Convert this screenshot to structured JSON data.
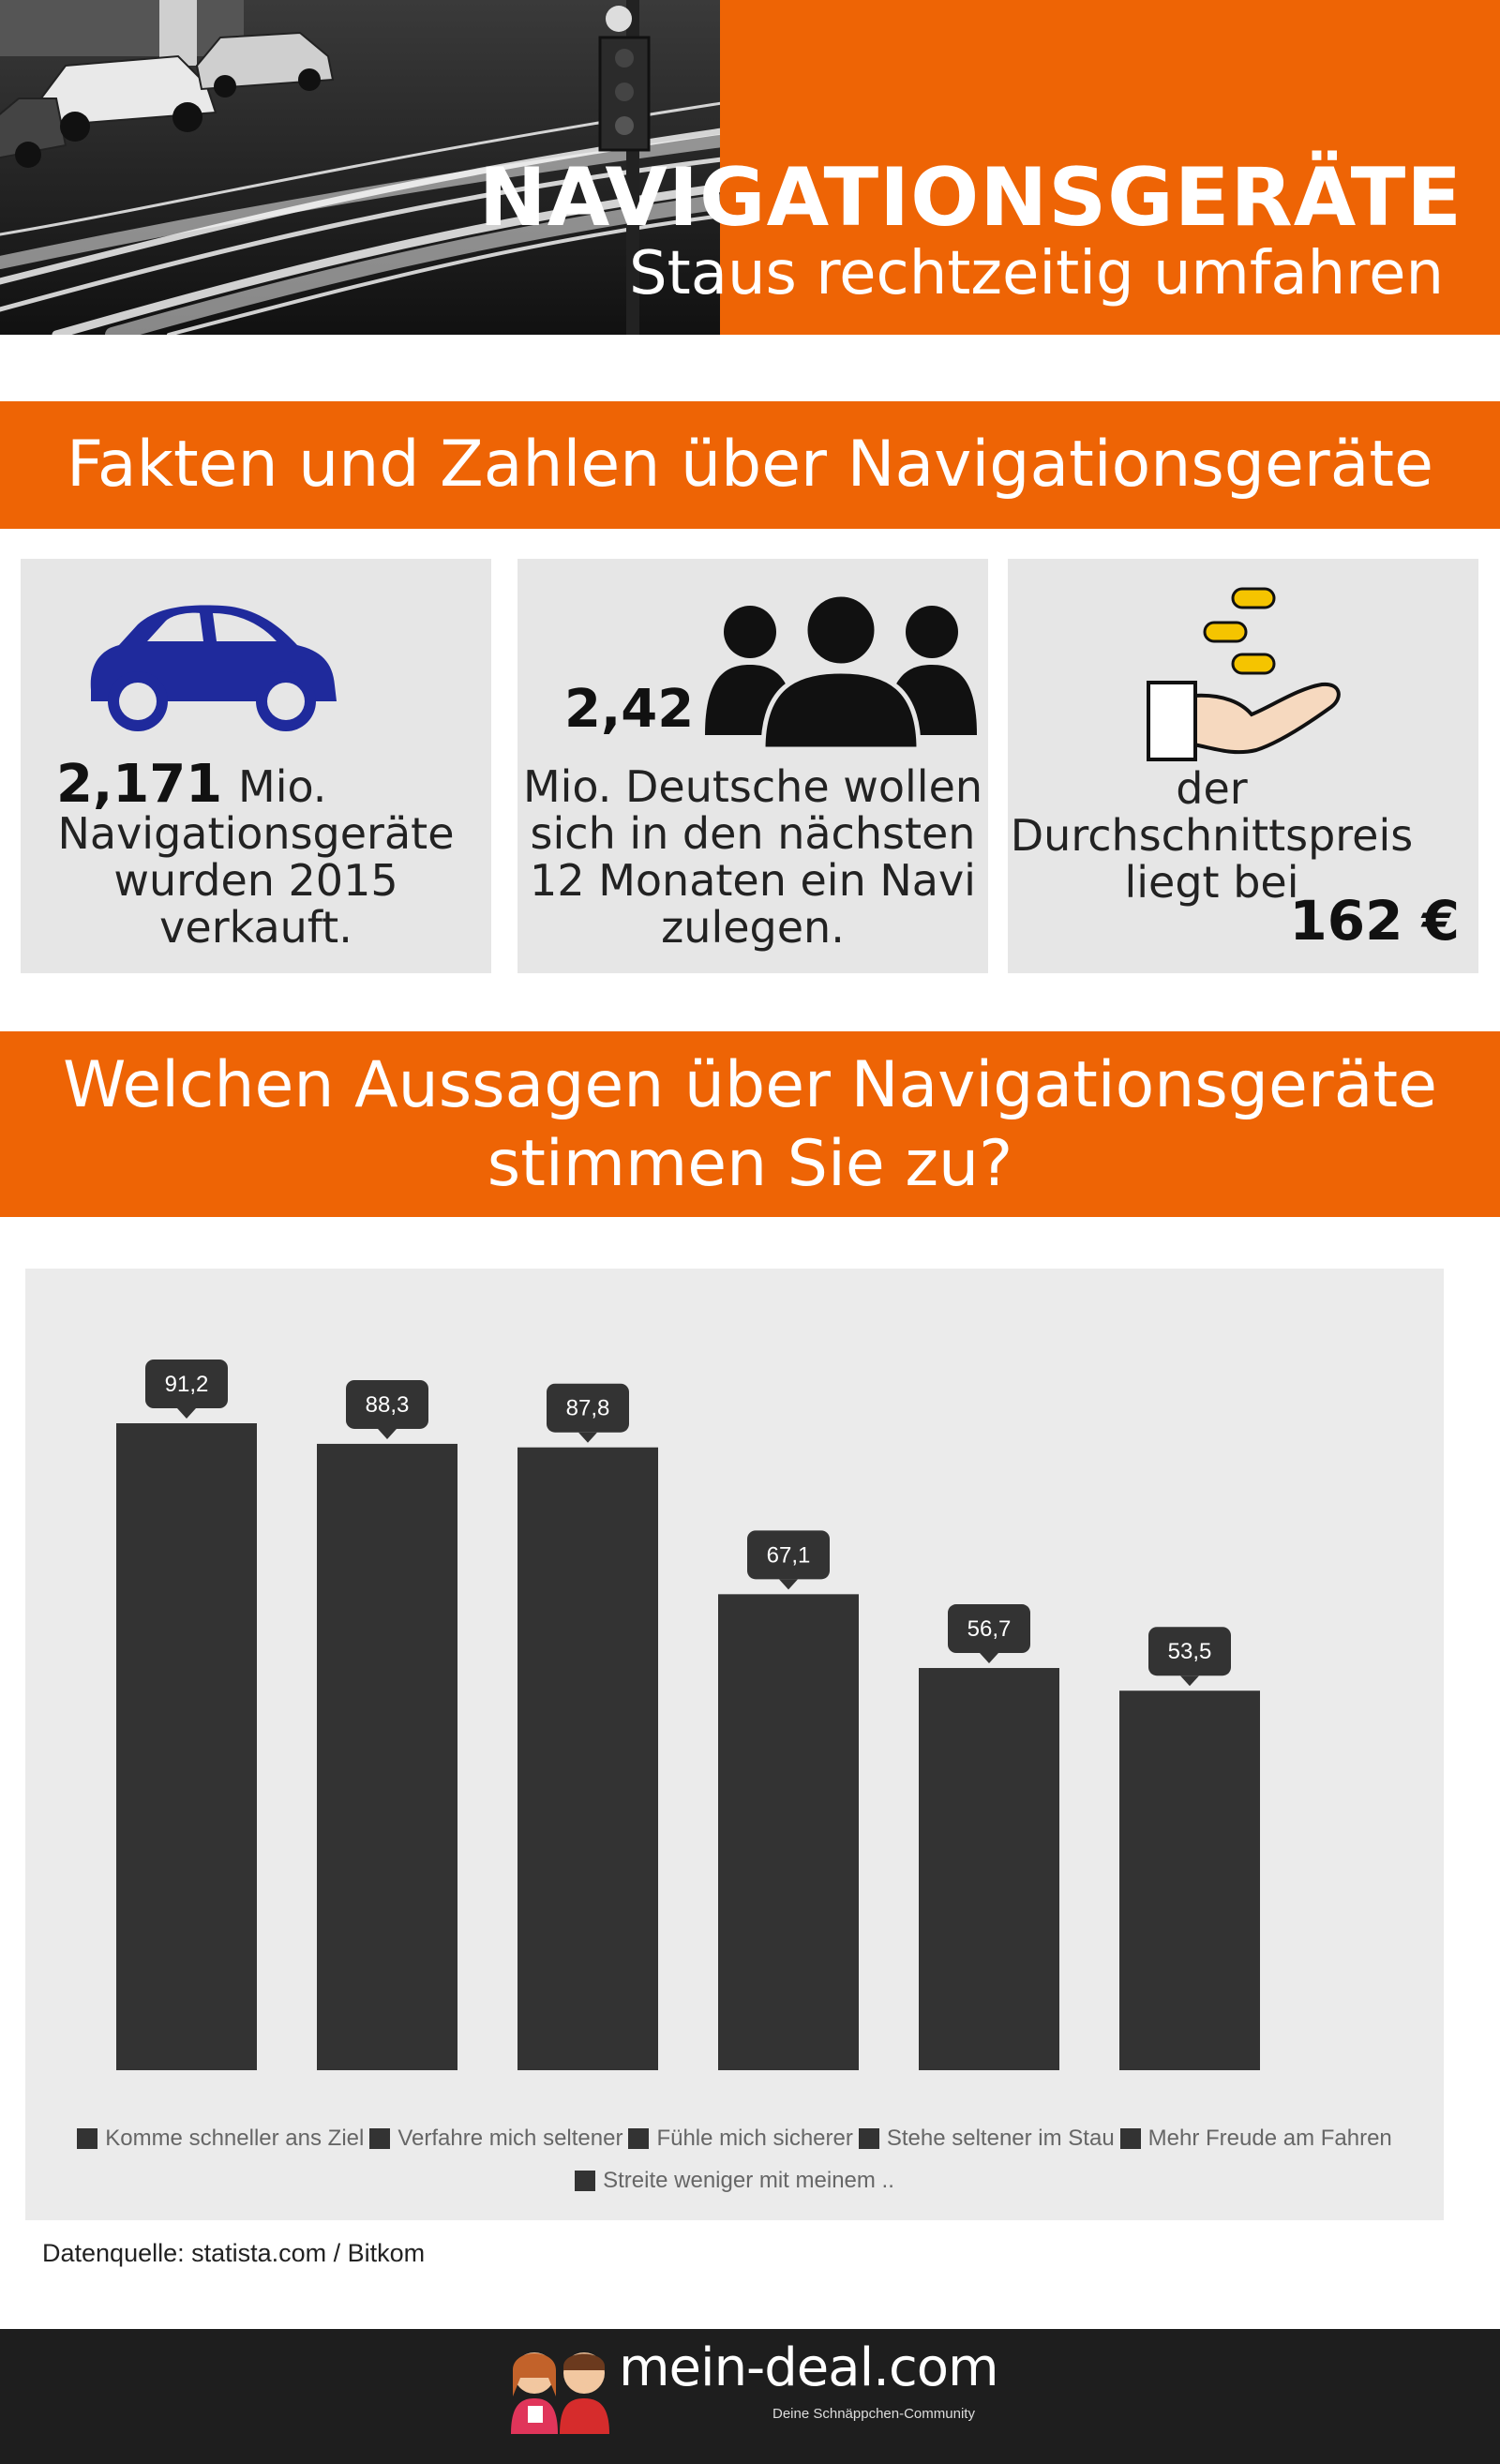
{
  "header": {
    "title": "NAVIGATIONSGERÄTE",
    "subtitle": "Staus rechtzeitig umfahren"
  },
  "facts_section": {
    "heading": "Fakten und Zahlen über Navigationsgeräte",
    "cards": [
      {
        "icon": "car-icon",
        "value": "2,171",
        "lines": [
          "Mio.",
          "Navigationsgeräte",
          "wurden 2015",
          "verkauft."
        ]
      },
      {
        "icon": "people-icon",
        "value": "2,42",
        "lines": [
          "Mio. Deutsche wollen",
          "sich in den nächsten",
          "12 Monaten ein Navi",
          "zulegen."
        ]
      },
      {
        "icon": "coins-hand-icon",
        "value": "162 €",
        "lines": [
          "der",
          "Durchschnittspreis",
          "liegt bei"
        ]
      }
    ]
  },
  "question_section": {
    "heading_line1": "Welchen Aussagen über Navigationsgeräte",
    "heading_line2": "stimmen Sie zu?"
  },
  "chart_data": {
    "type": "bar",
    "title": "Welchen Aussagen über Navigationsgeräte stimmen Sie zu?",
    "categories": [
      "Komme schneller ans Ziel",
      "Verfahre mich seltener",
      "Fühle mich sicherer",
      "Stehe seltener im Stau",
      "Mehr Freude am Fahren",
      "Streite weniger mit meinem .."
    ],
    "values": [
      91.2,
      88.3,
      87.8,
      67.1,
      56.7,
      53.5
    ],
    "value_labels": [
      "91,2",
      "88,3",
      "87,8",
      "67,1",
      "56,7",
      "53,5"
    ],
    "ylim": [
      0,
      100
    ],
    "grid": false,
    "legend_position": "bottom",
    "bar_color": "#333333"
  },
  "source": "Datenquelle: statista.com / Bitkom",
  "footer": {
    "logo": "mein-deal.com",
    "tagline": "Deine Schnäppchen-Community"
  },
  "colors": {
    "accent": "#ee6405",
    "bar": "#333333",
    "panel": "#ebebeb"
  }
}
